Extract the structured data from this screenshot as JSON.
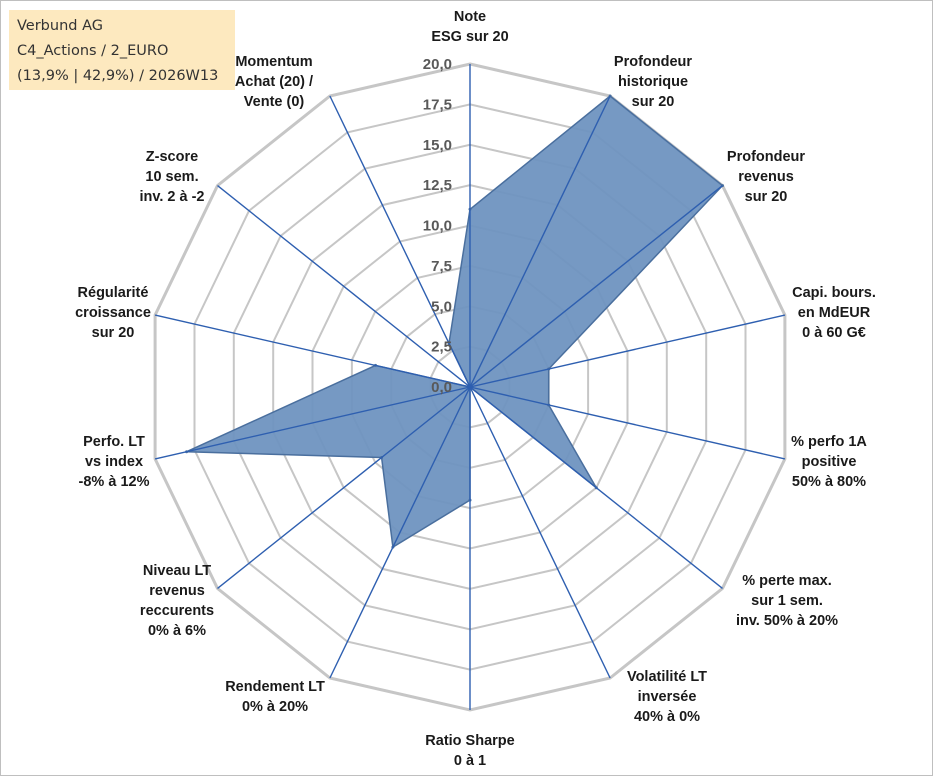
{
  "info": {
    "line1": "Verbund AG",
    "line2": "C4_Actions / 2_EURO",
    "line3": "(13,9% | 42,9%) / 2026W13"
  },
  "chart_data": {
    "type": "radar",
    "title": "",
    "ylim": [
      0,
      20
    ],
    "ticks": [
      "0,0",
      "2,5",
      "5,0",
      "7,5",
      "10,0",
      "12,5",
      "15,0",
      "17,5",
      "20,0"
    ],
    "categories": [
      [
        "Note",
        "ESG sur 20"
      ],
      [
        "Profondeur",
        "historique",
        "sur 20"
      ],
      [
        "Profondeur",
        "revenus",
        "sur 20"
      ],
      [
        "Capi. bours.",
        "en MdEUR",
        "0 à 60 G€"
      ],
      [
        "% perfo 1A",
        "positive",
        "50% à 80%"
      ],
      [
        "% perte max.",
        "sur 1 sem.",
        "inv. 50% à 20%"
      ],
      [
        "Volatilité LT",
        "inversée",
        "40% à 0%"
      ],
      [
        "Ratio Sharpe",
        "0 à 1"
      ],
      [
        "Rendement LT",
        "0% à 20%"
      ],
      [
        "Niveau LT",
        "revenus",
        "reccurents",
        "0% à 6%"
      ],
      [
        "Perfo. LT",
        "vs index",
        "-8% à 12%"
      ],
      [
        "Régularité",
        "croissance",
        "sur 20"
      ],
      [
        "Z-score",
        "10 sem.",
        "inv. 2 à -2"
      ],
      [
        "Momentum",
        "Achat (20) /",
        "Vente (0)"
      ]
    ],
    "series": [
      {
        "values": [
          11.0,
          20.0,
          20.0,
          5.0,
          5.0,
          10.0,
          0.0,
          7.0,
          11.0,
          7.0,
          18.0,
          6.0,
          0.0,
          3.0
        ],
        "fill": "#6f93c0",
        "stroke": "#4a6f9e"
      }
    ],
    "grid": true,
    "colors": {
      "grid": "#c6c6c6",
      "spokes": "#2e5fb0"
    }
  }
}
